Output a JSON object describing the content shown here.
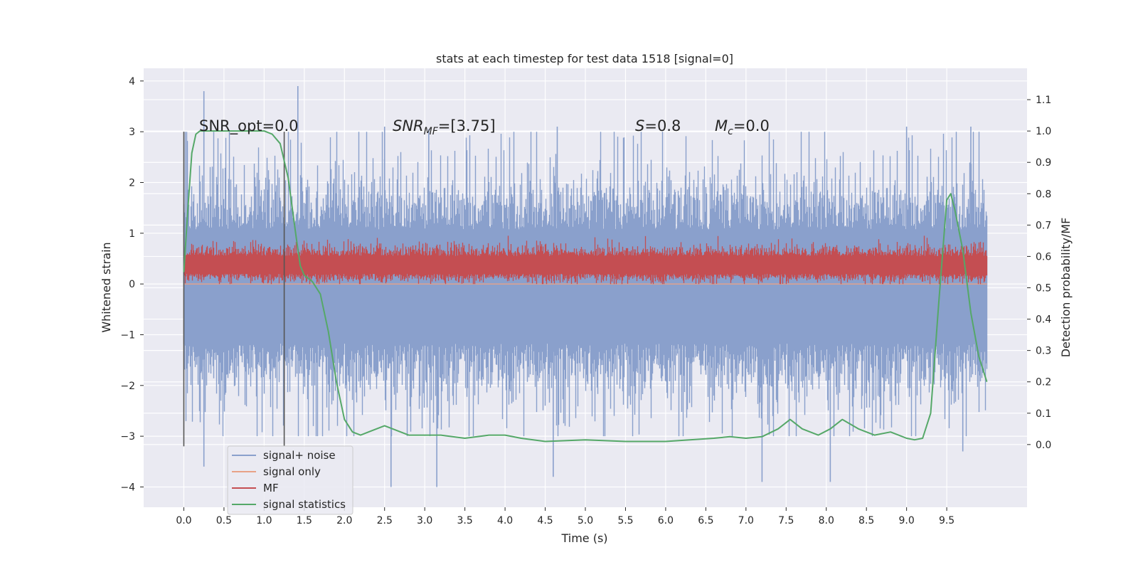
{
  "chart_data": {
    "type": "line",
    "title": "stats at each timestep for test data 1518 [signal=0]",
    "xlabel": "Time (s)",
    "ylabel": "Whitened strain",
    "ylabel_right": "Detection probability/MF",
    "xlim": [
      -0.5,
      10.5
    ],
    "ylim": [
      -4.4,
      4.25
    ],
    "ylim_right": [
      -0.2,
      1.2
    ],
    "x_ticks": [
      "0.0",
      "0.5",
      "1.0",
      "1.5",
      "2.0",
      "2.5",
      "3.0",
      "3.5",
      "4.0",
      "4.5",
      "5.0",
      "5.5",
      "6.0",
      "6.5",
      "7.0",
      "7.5",
      "8.0",
      "8.5",
      "9.0",
      "9.5"
    ],
    "y_ticks": [
      "4",
      "3",
      "2",
      "1",
      "0",
      "−1",
      "−2",
      "−3",
      "−4"
    ],
    "y_right_ticks": [
      "1.1",
      "1.0",
      "0.9",
      "0.8",
      "0.7",
      "0.6",
      "0.5",
      "0.4",
      "0.3",
      "0.2",
      "0.1",
      "0.0"
    ],
    "grid": true,
    "legend_position": "lower-left",
    "annotations": {
      "snr_opt": "SNR_opt=0.0",
      "snr_mf_main": "SNR",
      "snr_mf_sub": "MF",
      "snr_mf_value": "=[3.75]",
      "s_label": "S",
      "s_value": "=0.8",
      "mc_label": "M",
      "mc_sub": "c",
      "mc_value": "=0.0"
    },
    "vertical_markers": [
      0.0,
      1.25
    ],
    "series": [
      {
        "name": "signal+ noise",
        "color": "#8aa0cc",
        "axis": "left",
        "style": "noise-band",
        "x_range": [
          0.0,
          10.0
        ],
        "band_typical": [
          -1.3,
          1.2
        ],
        "peaks_max": [
          [
            0.25,
            3.8
          ],
          [
            1.42,
            3.9
          ],
          [
            2.5,
            3.1
          ],
          [
            3.05,
            3.05
          ],
          [
            4.65,
            3.1
          ],
          [
            9.0,
            3.1
          ],
          [
            9.8,
            3.1
          ]
        ],
        "peaks_min": [
          [
            0.25,
            -3.6
          ],
          [
            2.58,
            -4.0
          ],
          [
            3.15,
            -4.0
          ],
          [
            4.6,
            -3.8
          ],
          [
            7.2,
            -3.9
          ],
          [
            8.05,
            -3.9
          ],
          [
            9.7,
            -3.3
          ]
        ]
      },
      {
        "name": "signal only",
        "color": "#e8a287",
        "axis": "left",
        "style": "flat",
        "x_range": [
          0.0,
          10.0
        ],
        "value": 0.0
      },
      {
        "name": "MF",
        "color": "#c44e52",
        "axis": "left",
        "style": "noise-band",
        "x_range": [
          0.0,
          10.0
        ],
        "band_typical": [
          0.05,
          0.75
        ],
        "max": 0.95
      },
      {
        "name": "signal statistics",
        "color": "#55a868",
        "axis": "right",
        "style": "line",
        "x": [
          0.0,
          0.05,
          0.1,
          0.15,
          0.2,
          0.3,
          0.5,
          0.8,
          1.0,
          1.1,
          1.2,
          1.3,
          1.4,
          1.45,
          1.5,
          1.6,
          1.7,
          1.8,
          1.9,
          2.0,
          2.1,
          2.2,
          2.3,
          2.4,
          2.5,
          2.6,
          2.8,
          3.0,
          3.2,
          3.5,
          3.8,
          4.0,
          4.2,
          4.5,
          5.0,
          5.5,
          6.0,
          6.3,
          6.6,
          6.8,
          7.0,
          7.2,
          7.4,
          7.55,
          7.7,
          7.9,
          8.05,
          8.2,
          8.4,
          8.6,
          8.8,
          9.0,
          9.1,
          9.2,
          9.3,
          9.4,
          9.5,
          9.55,
          9.6,
          9.7,
          9.8,
          9.9,
          10.0
        ],
        "y": [
          0.55,
          0.75,
          0.93,
          0.99,
          1.0,
          1.0,
          1.0,
          1.0,
          1.0,
          0.99,
          0.96,
          0.85,
          0.66,
          0.57,
          0.54,
          0.52,
          0.48,
          0.36,
          0.2,
          0.08,
          0.04,
          0.03,
          0.04,
          0.05,
          0.06,
          0.05,
          0.03,
          0.03,
          0.03,
          0.02,
          0.03,
          0.03,
          0.02,
          0.01,
          0.015,
          0.01,
          0.01,
          0.015,
          0.02,
          0.025,
          0.02,
          0.025,
          0.05,
          0.08,
          0.05,
          0.03,
          0.05,
          0.08,
          0.05,
          0.03,
          0.04,
          0.02,
          0.015,
          0.02,
          0.1,
          0.45,
          0.78,
          0.8,
          0.75,
          0.62,
          0.42,
          0.28,
          0.2
        ]
      }
    ]
  }
}
